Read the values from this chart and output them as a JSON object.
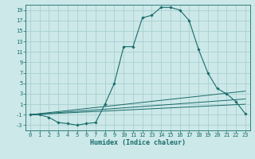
{
  "xlabel": "Humidex (Indice chaleur)",
  "background_color": "#cce8e8",
  "grid_color": "#aad0d0",
  "line_color": "#1a6b6b",
  "xlim": [
    -0.5,
    23.5
  ],
  "ylim": [
    -4,
    20
  ],
  "xticks": [
    0,
    1,
    2,
    3,
    4,
    5,
    6,
    7,
    8,
    9,
    10,
    11,
    12,
    13,
    14,
    15,
    16,
    17,
    18,
    19,
    20,
    21,
    22,
    23
  ],
  "yticks": [
    -3,
    -1,
    1,
    3,
    5,
    7,
    9,
    11,
    13,
    15,
    17,
    19
  ],
  "line1_x": [
    0,
    1,
    2,
    3,
    4,
    5,
    6,
    7,
    8,
    9,
    10,
    11,
    12,
    13,
    14,
    15,
    16,
    17,
    18,
    19,
    20,
    21,
    22,
    23
  ],
  "line1_y": [
    -1,
    -1,
    -1.5,
    -2.5,
    -2.7,
    -3,
    -2.7,
    -2.5,
    1,
    5,
    12,
    12,
    17.5,
    18,
    19.5,
    19.5,
    19,
    17,
    11.5,
    7,
    4,
    3,
    1.5,
    -0.8
  ],
  "line2_x": [
    0,
    23
  ],
  "line2_y": [
    -1,
    1
  ],
  "line3_x": [
    0,
    23
  ],
  "line3_y": [
    -1,
    3.5
  ],
  "line4_x": [
    0,
    23
  ],
  "line4_y": [
    -1,
    2
  ],
  "tick_fontsize": 5.0,
  "xlabel_fontsize": 6.0
}
